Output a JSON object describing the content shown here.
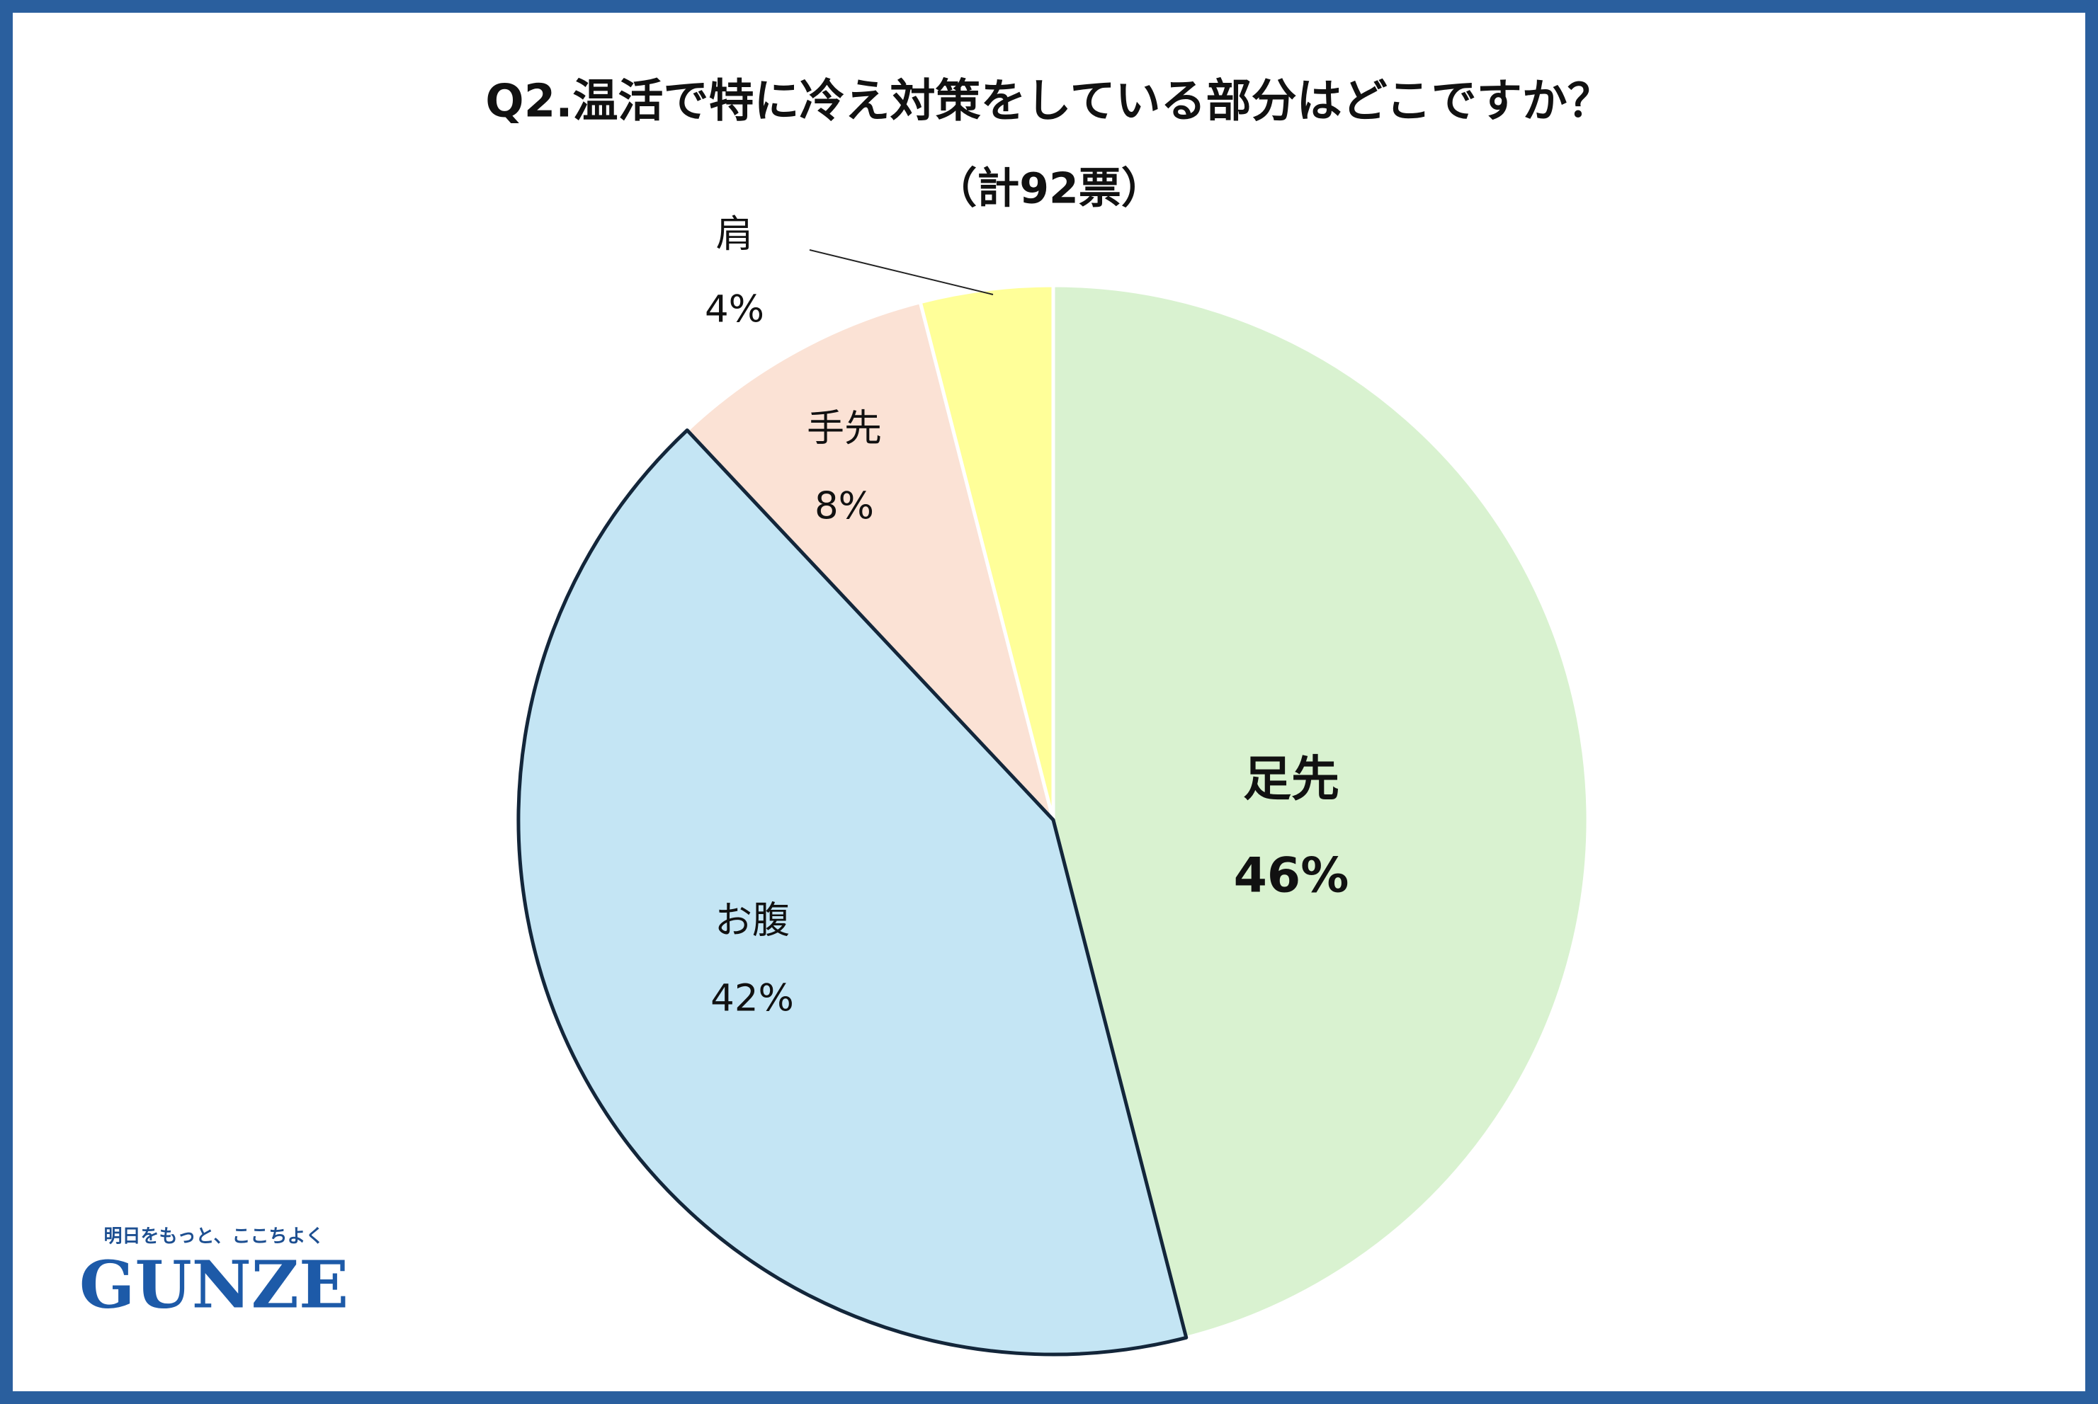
{
  "chart_data": {
    "type": "pie",
    "title": "Q2.温活で特に冷え対策をしている部分はどこですか？",
    "subtitle": "（計92票）",
    "categories": [
      "足先",
      "お腹",
      "手先",
      "肩"
    ],
    "values": [
      46,
      42,
      8,
      4
    ],
    "value_labels": [
      "46%",
      "42%",
      "8%",
      "4%"
    ],
    "colors": [
      "#d9f2d0",
      "#c4e5f4",
      "#fbe2d5",
      "#ffff99"
    ]
  },
  "logo": {
    "tagline": "明日をもっと、ここちよく",
    "brand": "GUNZE"
  }
}
